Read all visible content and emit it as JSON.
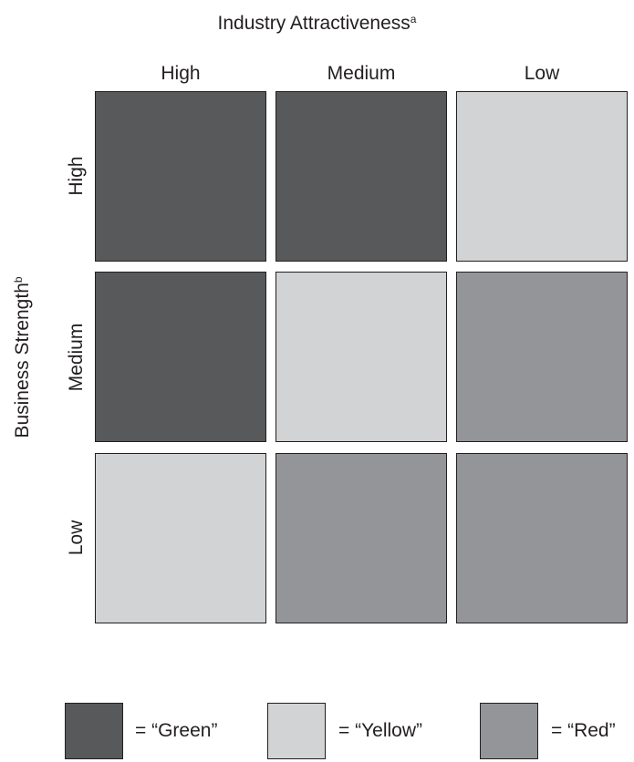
{
  "matrix": {
    "column_title": "Industry Attractiveness",
    "column_title_sup": "a",
    "row_title": "Business Strength",
    "row_title_sup": "b",
    "columns": [
      "High",
      "Medium",
      "Low"
    ],
    "rows": [
      "High",
      "Medium",
      "Low"
    ],
    "cells": [
      [
        "Green",
        "Green",
        "Yellow"
      ],
      [
        "Green",
        "Yellow",
        "Red"
      ],
      [
        "Yellow",
        "Red",
        "Red"
      ]
    ]
  },
  "legend": [
    {
      "label": "= “Green”",
      "status": "Green"
    },
    {
      "label": "= “Yellow”",
      "status": "Yellow"
    },
    {
      "label": "= “Red”",
      "status": "Red"
    }
  ],
  "colors": {
    "Green": "#58595b",
    "Yellow": "#d1d3d4",
    "Red": "#939598",
    "border": "#231f20"
  }
}
